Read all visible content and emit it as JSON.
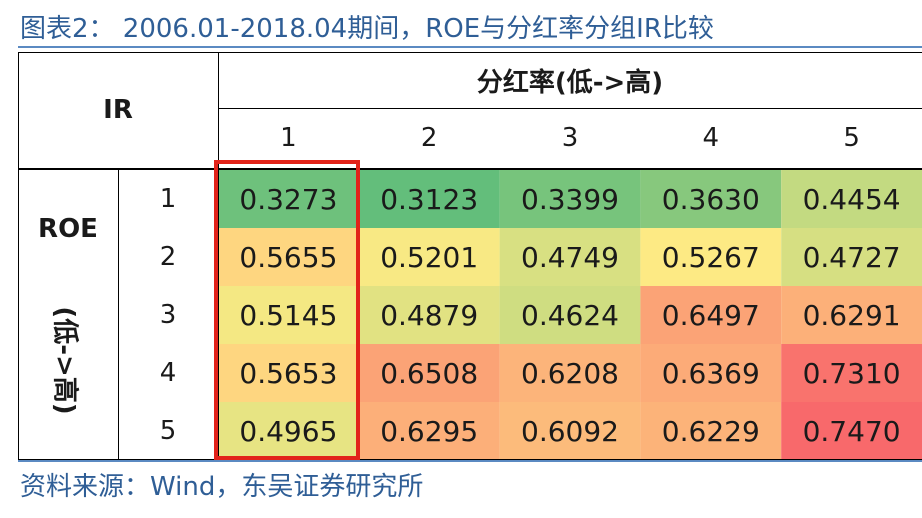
{
  "title": "图表2：  2006.01-2018.04期间，ROE与分红率分组IR比较",
  "source": "资料来源：Wind，东吴证券研究所",
  "table": {
    "corner_label": "IR",
    "column_group_label": "分红率(低->高)",
    "row_group_label": "ROE",
    "row_group_sublabel": "(低->高)",
    "column_labels": [
      "1",
      "2",
      "3",
      "4",
      "5"
    ],
    "row_labels": [
      "1",
      "2",
      "3",
      "4",
      "5"
    ],
    "highlighted_column": "1"
  },
  "chart_data": {
    "type": "heatmap",
    "title": "2006.01-2018.04期间，ROE与分红率分组IR比较",
    "x_axis_label": "分红率(低->高)",
    "y_axis_label": "ROE (低->高)",
    "x_categories": [
      "1",
      "2",
      "3",
      "4",
      "5"
    ],
    "y_categories": [
      "1",
      "2",
      "3",
      "4",
      "5"
    ],
    "values": [
      [
        "0.3273",
        "0.3123",
        "0.3399",
        "0.3630",
        "0.4454"
      ],
      [
        "0.5655",
        "0.5201",
        "0.4749",
        "0.5267",
        "0.4727"
      ],
      [
        "0.5145",
        "0.4879",
        "0.4624",
        "0.6497",
        "0.6291"
      ],
      [
        "0.5653",
        "0.6508",
        "0.6208",
        "0.6369",
        "0.7310"
      ],
      [
        "0.4965",
        "0.6295",
        "0.6092",
        "0.6229",
        "0.7470"
      ]
    ],
    "color_scale": {
      "low": "#63be7b",
      "mid": "#ffeb84",
      "high": "#f8696b"
    }
  }
}
